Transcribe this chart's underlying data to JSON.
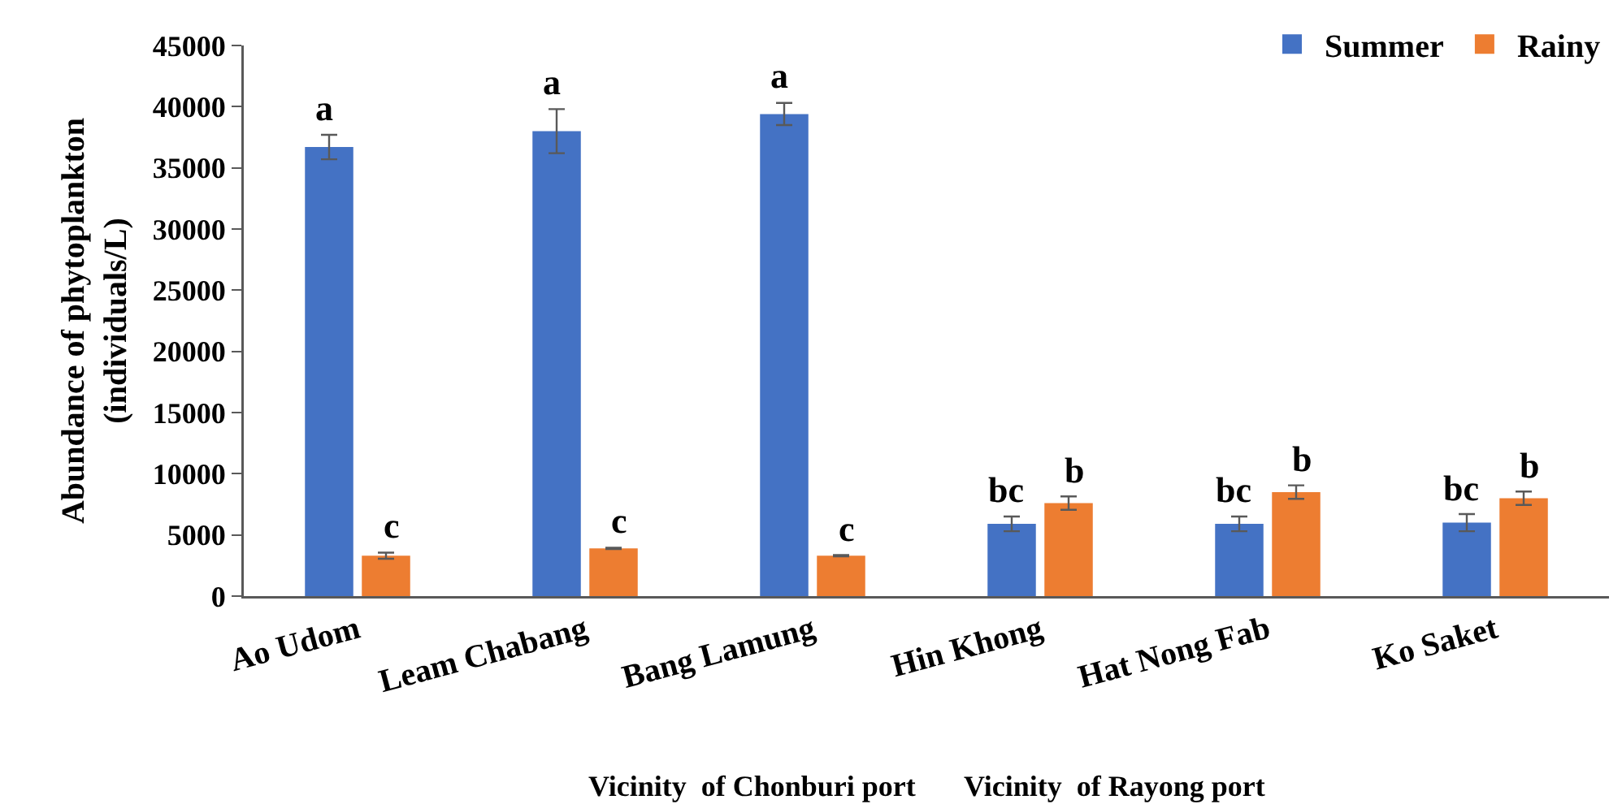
{
  "chart_data": {
    "type": "bar",
    "ylabel": "Abundance of phytoplankton\n(individuals/L)",
    "categories": [
      "Ao Udom",
      "Leam Chabang",
      "Bang Lamung",
      "Hin Khong",
      "Hat Nong Fab",
      "Ko Saket"
    ],
    "series": [
      {
        "name": "Summer",
        "color": "#4472c4",
        "values": [
          36700,
          38000,
          39400,
          5900,
          5900,
          6000
        ],
        "errors": [
          1000,
          1800,
          900,
          600,
          600,
          700
        ],
        "value_labels": [
          "a",
          "a",
          "a",
          "bc",
          "bc",
          "bc"
        ]
      },
      {
        "name": "Rainy",
        "color": "#ed7d31",
        "values": [
          3300,
          3900,
          3300,
          7600,
          8500,
          8000
        ],
        "errors": [
          250,
          50,
          50,
          550,
          550,
          550
        ],
        "value_labels": [
          "c",
          "c",
          "c",
          "b",
          "b",
          "b"
        ]
      }
    ],
    "ylim": [
      0,
      45000
    ],
    "yticks": [
      0,
      5000,
      10000,
      15000,
      20000,
      25000,
      30000,
      35000,
      40000,
      45000
    ],
    "grid": false,
    "legend": "top right",
    "annotations": [
      "Vicinity  of Chonburi port",
      "Vicinity  of Rayong port"
    ]
  }
}
